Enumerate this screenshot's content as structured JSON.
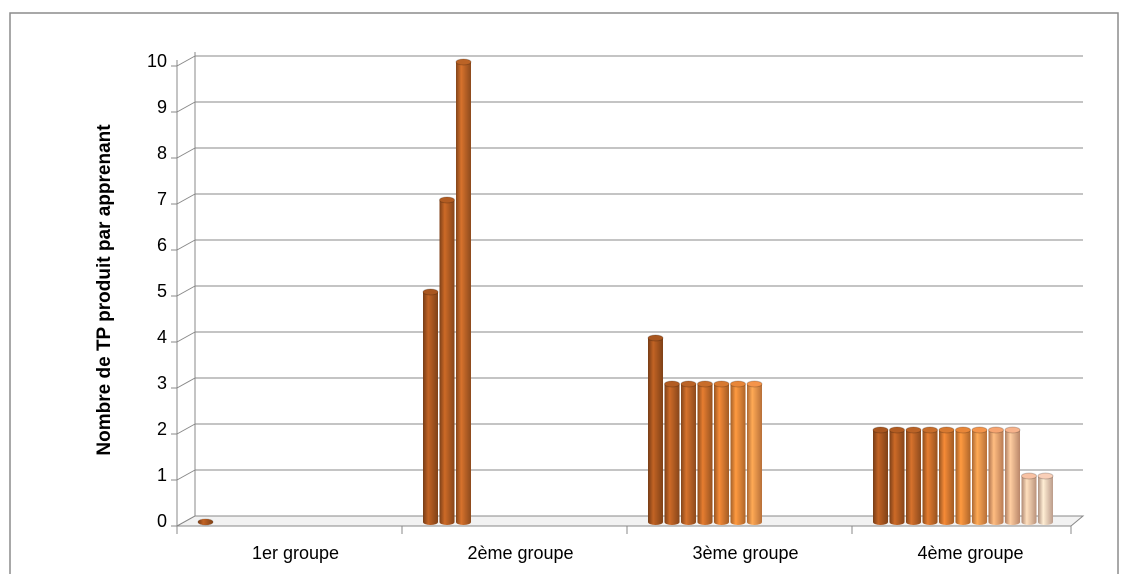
{
  "chart_data": {
    "type": "bar",
    "y_label": "Nombre de TP produit par apprenant",
    "categories": [
      "1er groupe",
      "2ème groupe",
      "3ème groupe",
      "4ème groupe"
    ],
    "series": [
      {
        "color": "#a9561f",
        "values": [
          0,
          5,
          4,
          2
        ]
      },
      {
        "color": "#b25c22",
        "values": [
          null,
          7,
          3,
          2
        ]
      },
      {
        "color": "#bb6326",
        "values": [
          null,
          10,
          3,
          2
        ]
      },
      {
        "color": "#c86d2a",
        "values": [
          null,
          null,
          3,
          2
        ]
      },
      {
        "color": "#d77930",
        "values": [
          null,
          null,
          3,
          2
        ]
      },
      {
        "color": "#e88638",
        "values": [
          null,
          null,
          3,
          2
        ]
      },
      {
        "color": "#f4944a",
        "values": [
          null,
          null,
          3,
          2
        ]
      },
      {
        "color": "#f6a470",
        "values": [
          null,
          null,
          null,
          2
        ]
      },
      {
        "color": "#f7b38c",
        "values": [
          null,
          null,
          null,
          2
        ]
      },
      {
        "color": "#f8c2a4",
        "values": [
          null,
          null,
          null,
          1
        ]
      },
      {
        "color": "#f9cfb8",
        "values": [
          null,
          null,
          null,
          1
        ]
      }
    ],
    "ylim": [
      0,
      10
    ],
    "yticks": [
      0,
      1,
      2,
      3,
      4,
      5,
      6,
      7,
      8,
      9,
      10
    ],
    "grid": true
  }
}
